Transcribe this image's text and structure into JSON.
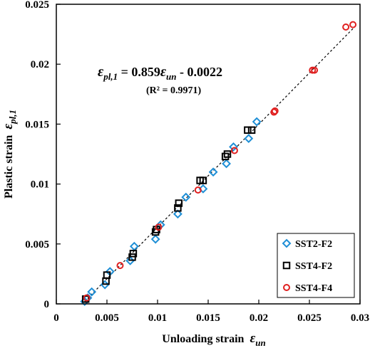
{
  "chart_data": {
    "type": "scatter",
    "xlabel": "Unloading strain",
    "xlabel_symbol": "ε",
    "xlabel_sub": "un",
    "ylabel": "Plastic strain",
    "ylabel_symbol": "ε",
    "ylabel_sub": "pl,1",
    "xlim": [
      0,
      0.03
    ],
    "ylim": [
      0,
      0.025
    ],
    "xticks": [
      0,
      0.005,
      0.01,
      0.015,
      0.02,
      0.025,
      0.03
    ],
    "yticks": [
      0,
      0.005,
      0.01,
      0.015,
      0.02,
      0.025
    ],
    "xtick_labels": [
      "0",
      "0.005",
      "0.01",
      "0.015",
      "0.02",
      "0.025",
      "0.03"
    ],
    "ytick_labels": [
      "0",
      "0.005",
      "0.01",
      "0.015",
      "0.02",
      "0.025"
    ],
    "grid": false,
    "legend_position": "bottom-right",
    "annotation": {
      "eq_lhs_symbol": "ε",
      "eq_lhs_sub": "pl,1",
      "eq_mid": " = 0.859",
      "eq_rhs_symbol": "ε",
      "eq_rhs_sub": "un",
      "eq_tail": " - 0.0022",
      "r2": "(R² = 0.9971)"
    },
    "trendline": {
      "slope": 0.859,
      "intercept": -0.0022,
      "x_range": [
        0.0028,
        0.0295
      ],
      "style": "dashed"
    },
    "series": [
      {
        "name": "SST2-F2",
        "marker": "diamond",
        "color": "#1f8fd6",
        "points": [
          [
            0.0028,
            0.0002
          ],
          [
            0.0031,
            0.0005
          ],
          [
            0.0035,
            0.001
          ],
          [
            0.0048,
            0.0016
          ],
          [
            0.0053,
            0.0027
          ],
          [
            0.0073,
            0.0036
          ],
          [
            0.0077,
            0.0048
          ],
          [
            0.0098,
            0.0054
          ],
          [
            0.0103,
            0.0066
          ],
          [
            0.012,
            0.0075
          ],
          [
            0.0128,
            0.0089
          ],
          [
            0.0145,
            0.0096
          ],
          [
            0.0155,
            0.011
          ],
          [
            0.0168,
            0.0117
          ],
          [
            0.0175,
            0.0131
          ],
          [
            0.019,
            0.0138
          ],
          [
            0.0198,
            0.0152
          ]
        ]
      },
      {
        "name": "SST4-F2",
        "marker": "square",
        "color": "#000000",
        "points": [
          [
            0.0029,
            0.0004
          ],
          [
            0.0049,
            0.0019
          ],
          [
            0.005,
            0.0024
          ],
          [
            0.0075,
            0.0039
          ],
          [
            0.0076,
            0.0042
          ],
          [
            0.0098,
            0.006
          ],
          [
            0.0099,
            0.0062
          ],
          [
            0.012,
            0.008
          ],
          [
            0.0121,
            0.0084
          ],
          [
            0.0142,
            0.0103
          ],
          [
            0.0145,
            0.0103
          ],
          [
            0.0167,
            0.0123
          ],
          [
            0.0169,
            0.0125
          ],
          [
            0.0189,
            0.0145
          ],
          [
            0.0193,
            0.0145
          ]
        ]
      },
      {
        "name": "SST4-F4",
        "marker": "circle",
        "color": "#e02020",
        "points": [
          [
            0.003,
            0.0005
          ],
          [
            0.0063,
            0.0032
          ],
          [
            0.0101,
            0.0064
          ],
          [
            0.014,
            0.0095
          ],
          [
            0.0176,
            0.0128
          ],
          [
            0.0215,
            0.016
          ],
          [
            0.0216,
            0.0161
          ],
          [
            0.0253,
            0.0195
          ],
          [
            0.0255,
            0.0195
          ],
          [
            0.0286,
            0.0231
          ],
          [
            0.0293,
            0.0233
          ]
        ]
      }
    ]
  }
}
